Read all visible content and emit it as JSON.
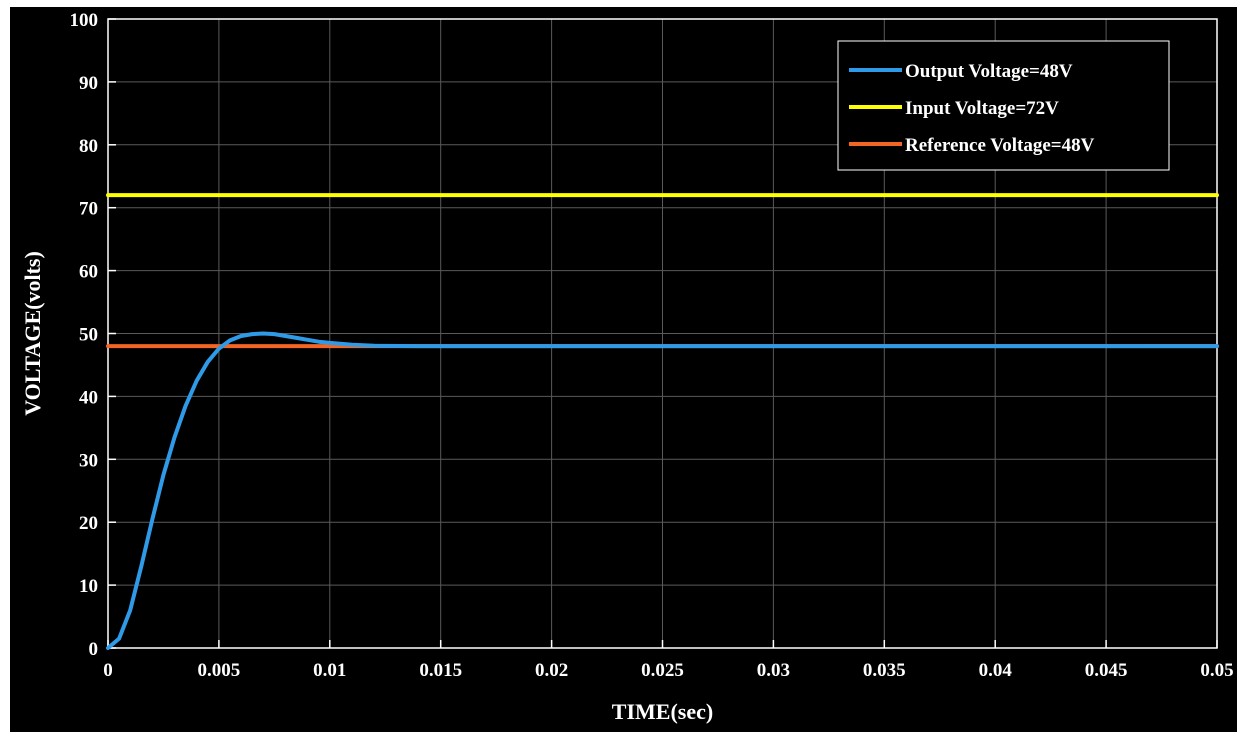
{
  "chart_data": {
    "type": "line",
    "title": "",
    "xlabel": "TIME(sec)",
    "ylabel": "VOLTAGE(volts)",
    "xlim": [
      0,
      0.05
    ],
    "ylim": [
      0,
      100
    ],
    "xticks": [
      0,
      0.005,
      0.01,
      0.015,
      0.02,
      0.025,
      0.03,
      0.035,
      0.04,
      0.045,
      0.05
    ],
    "xtick_labels": [
      "0",
      "0.005",
      "0.01",
      "0.015",
      "0.02",
      "0.025",
      "0.03",
      "0.035",
      "0.04",
      "0.045",
      "0.05"
    ],
    "yticks": [
      0,
      10,
      20,
      30,
      40,
      50,
      60,
      70,
      80,
      90,
      100
    ],
    "ytick_labels": [
      "0",
      "10",
      "20",
      "30",
      "40",
      "50",
      "60",
      "70",
      "80",
      "90",
      "100"
    ],
    "grid": true,
    "legend_position": "top-right",
    "background": "#000000",
    "series": [
      {
        "name": "Output Voltage=48V",
        "color": "#2f9be8",
        "x": [
          0,
          0.0005,
          0.001,
          0.0015,
          0.002,
          0.0025,
          0.003,
          0.0035,
          0.004,
          0.0045,
          0.005,
          0.0055,
          0.006,
          0.0065,
          0.007,
          0.0075,
          0.008,
          0.0085,
          0.009,
          0.0095,
          0.01,
          0.011,
          0.012,
          0.014,
          0.016,
          0.02,
          0.03,
          0.04,
          0.05
        ],
        "y": [
          0,
          1.5,
          6,
          13,
          20.5,
          27.5,
          33.5,
          38.5,
          42.5,
          45.5,
          47.6,
          48.9,
          49.6,
          49.9,
          50.0,
          49.9,
          49.6,
          49.3,
          49.0,
          48.7,
          48.5,
          48.2,
          48.05,
          48.0,
          48.0,
          48.0,
          48.0,
          48.0,
          48.0
        ]
      },
      {
        "name": "Input Voltage=72V",
        "color": "#ffff00",
        "x": [
          0,
          0.05
        ],
        "y": [
          72,
          72
        ]
      },
      {
        "name": "Reference Voltage=48V",
        "color": "#f26522",
        "x": [
          0,
          0.05
        ],
        "y": [
          48,
          48
        ]
      }
    ]
  }
}
